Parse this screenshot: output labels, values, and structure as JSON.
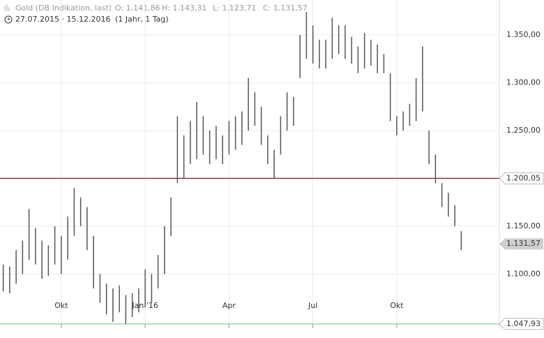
{
  "chart_data": {
    "type": "hilo",
    "title": "Gold (DB Indikation, last)",
    "quote": [
      "O: 1.141,86",
      "H: 1.143,31",
      "L: 1.123,71",
      "C: 1.131,57"
    ],
    "range": "27.07.2015 · 15.12.2016",
    "period": "(1 Jahr, 1 Tag)",
    "categories": [
      null,
      null,
      null,
      null,
      null,
      null,
      null,
      null,
      null,
      "Okt",
      null,
      null,
      null,
      null,
      null,
      null,
      null,
      null,
      null,
      null,
      null,
      null,
      "Jan '16",
      null,
      null,
      null,
      null,
      null,
      null,
      null,
      null,
      null,
      null,
      null,
      null,
      "Apr",
      null,
      null,
      null,
      null,
      null,
      null,
      null,
      null,
      null,
      null,
      null,
      null,
      "Jul",
      null,
      null,
      null,
      null,
      null,
      null,
      null,
      null,
      null,
      null,
      null,
      null,
      "Okt",
      null,
      null,
      null,
      null,
      null,
      null,
      null,
      null,
      null,
      null
    ],
    "low": [
      1082,
      1080,
      1090,
      1100,
      1115,
      1110,
      1095,
      1098,
      1110,
      1100,
      1115,
      1140,
      1150,
      1125,
      1085,
      1070,
      1058,
      1050,
      1060,
      1048,
      1055,
      1060,
      1065,
      1070,
      1085,
      1100,
      1140,
      1195,
      1200,
      1215,
      1220,
      1225,
      1215,
      1220,
      1215,
      1225,
      1230,
      1235,
      1250,
      1255,
      1235,
      1215,
      1200,
      1225,
      1250,
      1255,
      1305,
      1325,
      1320,
      1315,
      1315,
      1325,
      1330,
      1325,
      1320,
      1310,
      1315,
      1318,
      1310,
      1310,
      1260,
      1245,
      1250,
      1255,
      1260,
      1270,
      1215,
      1195,
      1170,
      1160,
      1150,
      1125
    ],
    "high": [
      1110,
      1108,
      1125,
      1135,
      1168,
      1148,
      1135,
      1130,
      1150,
      1140,
      1160,
      1190,
      1180,
      1170,
      1140,
      1100,
      1090,
      1085,
      1088,
      1078,
      1080,
      1085,
      1105,
      1100,
      1120,
      1150,
      1180,
      1265,
      1245,
      1260,
      1280,
      1265,
      1250,
      1255,
      1245,
      1260,
      1265,
      1270,
      1305,
      1290,
      1275,
      1245,
      1230,
      1265,
      1290,
      1285,
      1350,
      1374,
      1360,
      1345,
      1345,
      1368,
      1360,
      1360,
      1348,
      1338,
      1352,
      1345,
      1340,
      1330,
      1310,
      1265,
      1270,
      1278,
      1305,
      1338,
      1250,
      1225,
      1195,
      1185,
      1172,
      1145
    ],
    "color": "#555555",
    "ylim": [
      1043.4,
      1386.5
    ],
    "yticks": [
      {
        "value": 1100,
        "label": "1.100,00"
      },
      {
        "value": 1150,
        "label": "1.150,00"
      },
      {
        "value": 1200,
        "label": "1.200,00"
      },
      {
        "value": 1250,
        "label": "1.250,00"
      },
      {
        "value": 1300,
        "label": "1.300,00"
      },
      {
        "value": 1350,
        "label": "1.350,00"
      }
    ],
    "grid": true,
    "levels": [
      {
        "value": 1200.05,
        "label": "1.200,05",
        "color": "#8b1a2b"
      },
      {
        "value": 1047.93,
        "label": "1.047,93",
        "color": "#7fd17f"
      }
    ],
    "last": {
      "value": 1131.57,
      "label": "1.131,57"
    }
  }
}
